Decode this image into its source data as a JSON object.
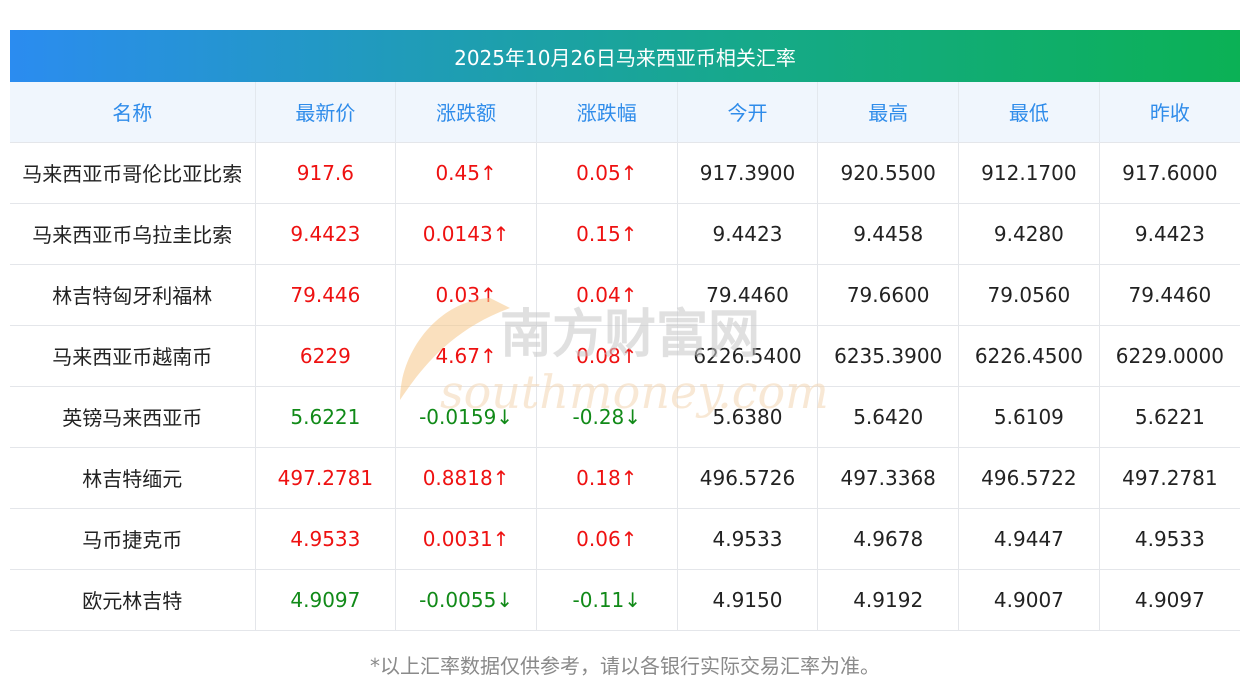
{
  "title": "2025年10月26日马来西亚币相关汇率",
  "headers": [
    "名称",
    "最新价",
    "涨跌额",
    "涨跌幅",
    "今开",
    "最高",
    "最低",
    "昨收"
  ],
  "rows": [
    {
      "name": "马来西亚币哥伦比亚比索",
      "latest": "917.6",
      "change": "0.45↑",
      "pct": "0.05↑",
      "open": "917.3900",
      "high": "920.5500",
      "low": "912.1700",
      "prev": "917.6000",
      "dir": "up"
    },
    {
      "name": "马来西亚币乌拉圭比索",
      "latest": "9.4423",
      "change": "0.0143↑",
      "pct": "0.15↑",
      "open": "9.4423",
      "high": "9.4458",
      "low": "9.4280",
      "prev": "9.4423",
      "dir": "up"
    },
    {
      "name": "林吉特匈牙利福林",
      "latest": "79.446",
      "change": "0.03↑",
      "pct": "0.04↑",
      "open": "79.4460",
      "high": "79.6600",
      "low": "79.0560",
      "prev": "79.4460",
      "dir": "up"
    },
    {
      "name": "马来西亚币越南币",
      "latest": "6229",
      "change": "4.67↑",
      "pct": "0.08↑",
      "open": "6226.5400",
      "high": "6235.3900",
      "low": "6226.4500",
      "prev": "6229.0000",
      "dir": "up"
    },
    {
      "name": "英镑马来西亚币",
      "latest": "5.6221",
      "change": "-0.0159↓",
      "pct": "-0.28↓",
      "open": "5.6380",
      "high": "5.6420",
      "low": "5.6109",
      "prev": "5.6221",
      "dir": "down"
    },
    {
      "name": "林吉特缅元",
      "latest": "497.2781",
      "change": "0.8818↑",
      "pct": "0.18↑",
      "open": "496.5726",
      "high": "497.3368",
      "low": "496.5722",
      "prev": "497.2781",
      "dir": "up"
    },
    {
      "name": "马币捷克币",
      "latest": "4.9533",
      "change": "0.0031↑",
      "pct": "0.06↑",
      "open": "4.9533",
      "high": "4.9678",
      "low": "4.9447",
      "prev": "4.9533",
      "dir": "up"
    },
    {
      "name": "欧元林吉特",
      "latest": "4.9097",
      "change": "-0.0055↓",
      "pct": "-0.11↓",
      "open": "4.9150",
      "high": "4.9192",
      "low": "4.9007",
      "prev": "4.9097",
      "dir": "down"
    }
  ],
  "watermark": {
    "cn": "南方财富网",
    "en": "southmoney.com"
  },
  "footnote": "*以上汇率数据仅供参考，请以各银行实际交易汇率为准。",
  "colors": {
    "up": "#ee1111",
    "down": "#118a18",
    "header_text": "#2f8cea"
  }
}
